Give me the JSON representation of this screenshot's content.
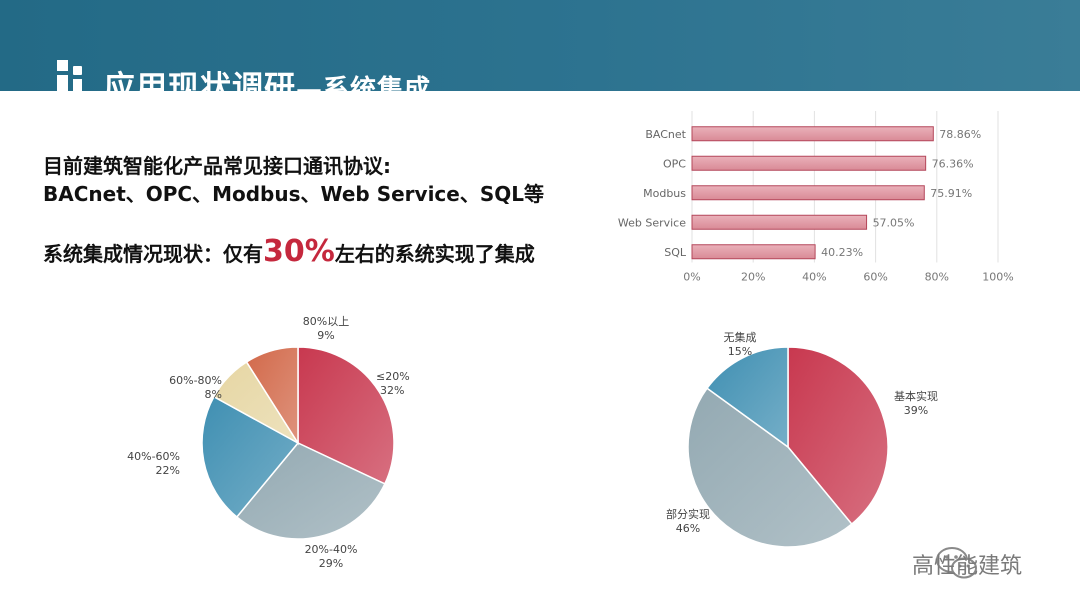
{
  "header": {
    "title_main": "应用现状调研",
    "title_sub": "—系统集成"
  },
  "intro": {
    "line1": "目前建筑智能化产品常见接口通讯协议:",
    "line2": "BACnet、OPC、Modbus、Web Service、SQL等",
    "line3_prefix": "系统集成情况现状：仅有",
    "line3_highlight": "30%",
    "line3_suffix": "左右的系统实现了集成"
  },
  "watermark": "高性能建筑",
  "chart_data": [
    {
      "type": "bar",
      "orientation": "horizontal",
      "categories": [
        "BACnet",
        "OPC",
        "Modbus",
        "Web Service",
        "SQL"
      ],
      "values": [
        78.86,
        76.36,
        75.91,
        57.05,
        40.23
      ],
      "data_labels": [
        "78.86%",
        "76.36%",
        "75.91%",
        "57.05%",
        "40.23%"
      ],
      "xlim": [
        0,
        100
      ],
      "x_ticks": [
        "0%",
        "20%",
        "40%",
        "60%",
        "80%",
        "100%"
      ],
      "grid": true,
      "colors": {
        "bar": "#d98a96",
        "bar_border": "#b4475a"
      }
    },
    {
      "type": "pie",
      "labels": [
        "≤20%",
        "20%-40%",
        "40%-60%",
        "60%-80%",
        "80%以上"
      ],
      "values": [
        32,
        29,
        22,
        8,
        9
      ],
      "value_labels": [
        "32%",
        "29%",
        "22%",
        "8%",
        "9%"
      ],
      "colors": [
        "#c8384f",
        "#93a9b2",
        "#3f8fb2",
        "#e6d6a3",
        "#d2694a"
      ]
    },
    {
      "type": "pie",
      "labels": [
        "基本实现",
        "部分实现",
        "无集成"
      ],
      "values": [
        39,
        46,
        15
      ],
      "value_labels": [
        "39%",
        "46%",
        "15%"
      ],
      "colors": [
        "#c8384f",
        "#93a9b2",
        "#3f8fb2"
      ]
    }
  ]
}
